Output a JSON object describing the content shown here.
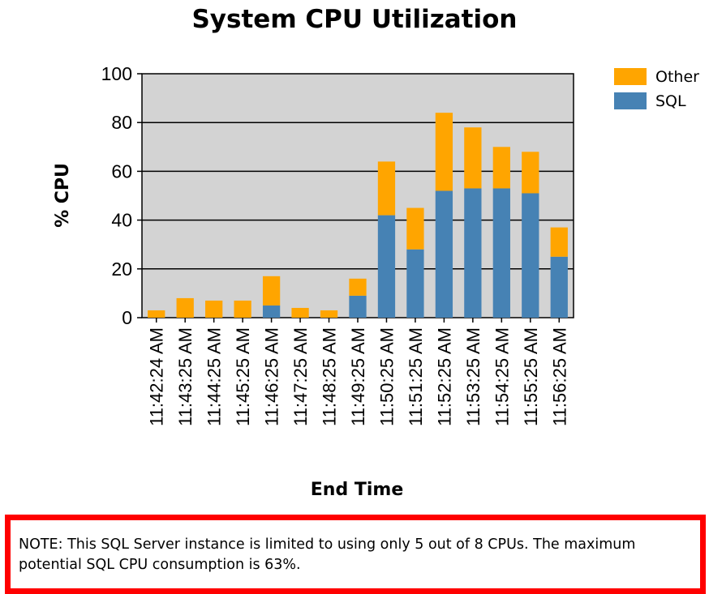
{
  "chart_data": {
    "type": "bar",
    "stacked": true,
    "title": "System CPU Utilization",
    "xlabel": "End Time",
    "ylabel": "% CPU",
    "ylim": [
      0,
      100
    ],
    "yticks": [
      0,
      20,
      40,
      60,
      80,
      100
    ],
    "grid": true,
    "legend_position": "top-right",
    "categories": [
      "11:42:24 AM",
      "11:43:25 AM",
      "11:44:25 AM",
      "11:45:25 AM",
      "11:46:25 AM",
      "11:47:25 AM",
      "11:48:25 AM",
      "11:49:25 AM",
      "11:50:25 AM",
      "11:51:25 AM",
      "11:52:25 AM",
      "11:53:25 AM",
      "11:54:25 AM",
      "11:55:25 AM",
      "11:56:25 AM"
    ],
    "series": [
      {
        "name": "SQL",
        "color": "#4682b4",
        "values": [
          0,
          0,
          0,
          0,
          5,
          0,
          0,
          9,
          42,
          28,
          52,
          53,
          53,
          51,
          25
        ]
      },
      {
        "name": "Other",
        "color": "#ffa500",
        "values": [
          3,
          8,
          7,
          7,
          12,
          4,
          3,
          7,
          22,
          17,
          32,
          25,
          17,
          17,
          12
        ]
      }
    ],
    "legend": [
      "Other",
      "SQL"
    ],
    "plot_background": "#d3d3d3"
  },
  "note": "NOTE: This SQL Server instance is limited to using only 5 out of 8 CPUs.  The maximum potential SQL CPU consumption is 63%."
}
